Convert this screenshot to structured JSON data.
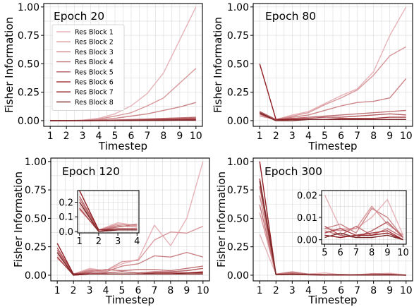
{
  "colors": [
    "#e6b3b8",
    "#d9989c",
    "#cc8588",
    "#c07276",
    "#b35b60",
    "#a83e44",
    "#8f1d22",
    "#7a2a2a"
  ],
  "chart_data": [
    {
      "type": "line",
      "title": "Epoch 20",
      "xlabel": "Timestep",
      "ylabel": "Fisher Information",
      "x": [
        1,
        2,
        3,
        4,
        5,
        6,
        7,
        8,
        9,
        10
      ],
      "xlim": [
        0.6,
        10.4
      ],
      "ylim": [
        -0.05,
        1.03
      ],
      "yticks": [
        "0.00",
        "0.25",
        "0.50",
        "0.75",
        "1.00"
      ],
      "legend": "top-left",
      "series": [
        {
          "name": "Res Block 1",
          "values": [
            0.0,
            0.0,
            0.005,
            0.02,
            0.06,
            0.13,
            0.24,
            0.42,
            0.71,
            1.0
          ]
        },
        {
          "name": "Res Block 2",
          "values": [
            0.0,
            0.0,
            0.003,
            0.015,
            0.04,
            0.07,
            0.13,
            0.2,
            0.33,
            0.46
          ]
        },
        {
          "name": "Res Block 3",
          "values": [
            0.0,
            0.0,
            0.002,
            0.008,
            0.02,
            0.04,
            0.06,
            0.09,
            0.12,
            0.16
          ]
        },
        {
          "name": "Res Block 4",
          "values": [
            0.0,
            0.0,
            0.001,
            0.003,
            0.006,
            0.01,
            0.015,
            0.02,
            0.025,
            0.03
          ]
        },
        {
          "name": "Res Block 5",
          "values": [
            0.0,
            0.0,
            0.001,
            0.002,
            0.004,
            0.007,
            0.01,
            0.014,
            0.018,
            0.022
          ]
        },
        {
          "name": "Res Block 6",
          "values": [
            0.0,
            0.0,
            0.0,
            0.001,
            0.002,
            0.004,
            0.006,
            0.008,
            0.01,
            0.012
          ]
        },
        {
          "name": "Res Block 7",
          "values": [
            0.0,
            0.0,
            0.0,
            0.001,
            0.001,
            0.002,
            0.003,
            0.004,
            0.005,
            0.006
          ]
        },
        {
          "name": "Res Block 8",
          "values": [
            0.0,
            0.0,
            0.0,
            0.0,
            0.001,
            0.001,
            0.002,
            0.002,
            0.003,
            0.003
          ]
        }
      ]
    },
    {
      "type": "line",
      "title": "Epoch 80",
      "xlabel": "Timestep",
      "ylabel": "Fisher Information",
      "x": [
        1,
        2,
        3,
        4,
        5,
        6,
        7,
        8,
        9,
        10
      ],
      "xlim": [
        0.6,
        10.4
      ],
      "ylim": [
        -0.05,
        1.03
      ],
      "yticks": [
        "0.00",
        "0.25",
        "0.50",
        "0.75",
        "1.00"
      ],
      "series": [
        {
          "values": [
            0.05,
            0.01,
            0.05,
            0.08,
            0.15,
            0.22,
            0.28,
            0.43,
            0.75,
            1.0
          ]
        },
        {
          "values": [
            0.04,
            0.01,
            0.04,
            0.07,
            0.14,
            0.2,
            0.27,
            0.4,
            0.57,
            0.65
          ]
        },
        {
          "values": [
            0.06,
            0.01,
            0.03,
            0.05,
            0.09,
            0.13,
            0.16,
            0.17,
            0.2,
            0.37
          ]
        },
        {
          "values": [
            0.07,
            0.01,
            0.02,
            0.03,
            0.04,
            0.05,
            0.06,
            0.07,
            0.08,
            0.09
          ]
        },
        {
          "values": [
            0.08,
            0.01,
            0.02,
            0.02,
            0.03,
            0.03,
            0.04,
            0.05,
            0.06,
            0.05
          ]
        },
        {
          "values": [
            0.06,
            0.0,
            0.01,
            0.01,
            0.01,
            0.02,
            0.02,
            0.02,
            0.03,
            0.03
          ]
        },
        {
          "values": [
            0.5,
            0.01,
            0.01,
            0.01,
            0.01,
            0.01,
            0.01,
            0.01,
            0.01,
            0.01
          ]
        },
        {
          "values": [
            0.07,
            0.0,
            0.0,
            0.01,
            0.01,
            0.01,
            0.01,
            0.01,
            0.01,
            0.01
          ]
        }
      ]
    },
    {
      "type": "line",
      "title": "Epoch 120",
      "xlabel": "Timestep",
      "ylabel": "Fisher Information",
      "x": [
        1,
        2,
        3,
        4,
        5,
        6,
        7,
        8,
        9,
        10
      ],
      "xlim": [
        0.6,
        10.4
      ],
      "ylim": [
        -0.05,
        1.03
      ],
      "yticks": [
        "0.00",
        "0.25",
        "0.50",
        "0.75",
        "1.00"
      ],
      "series": [
        {
          "values": [
            0.18,
            0.01,
            0.06,
            0.04,
            0.1,
            0.14,
            0.44,
            0.26,
            0.5,
            1.0
          ]
        },
        {
          "values": [
            0.15,
            0.01,
            0.05,
            0.04,
            0.12,
            0.13,
            0.31,
            0.38,
            0.37,
            0.43
          ]
        },
        {
          "values": [
            0.2,
            0.01,
            0.04,
            0.03,
            0.08,
            0.1,
            0.17,
            0.16,
            0.2,
            0.16
          ]
        },
        {
          "values": [
            0.22,
            0.01,
            0.03,
            0.05,
            0.04,
            0.05,
            0.05,
            0.04,
            0.06,
            0.08
          ]
        },
        {
          "values": [
            0.24,
            0.01,
            0.02,
            0.02,
            0.03,
            0.02,
            0.03,
            0.03,
            0.04,
            0.06
          ]
        },
        {
          "values": [
            0.16,
            0.0,
            0.01,
            0.01,
            0.01,
            0.01,
            0.02,
            0.02,
            0.02,
            0.03
          ]
        },
        {
          "values": [
            0.28,
            0.01,
            0.01,
            0.01,
            0.01,
            0.01,
            0.01,
            0.01,
            0.02,
            0.02
          ]
        },
        {
          "values": [
            0.2,
            0.0,
            0.01,
            0.01,
            0.01,
            0.01,
            0.01,
            0.01,
            0.01,
            0.01
          ]
        }
      ],
      "inset": {
        "xlim": [
          0.9,
          4.1
        ],
        "ylim": [
          -0.01,
          0.28
        ],
        "xticks": [
          1,
          2,
          3,
          4
        ],
        "yticks": [
          "0.0",
          "0.1",
          "0.2"
        ],
        "x": [
          1,
          2,
          3,
          4
        ]
      }
    },
    {
      "type": "line",
      "title": "Epoch 300",
      "xlabel": "Timestep",
      "ylabel": "Fisher Information",
      "x": [
        1,
        2,
        3,
        4,
        5,
        6,
        7,
        8,
        9,
        10
      ],
      "xlim": [
        0.6,
        10.4
      ],
      "ylim": [
        -0.05,
        1.03
      ],
      "yticks": [
        "0.00",
        "0.25",
        "0.50",
        "0.75",
        "1.00"
      ],
      "series": [
        {
          "values": [
            0.36,
            0.01,
            0.01,
            0.01,
            0.02,
            0.005,
            0.005,
            0.01,
            0.018,
            0.002
          ]
        },
        {
          "values": [
            0.55,
            0.01,
            0.02,
            0.01,
            0.005,
            0.004,
            0.005,
            0.015,
            0.007,
            0.002
          ]
        },
        {
          "values": [
            0.7,
            0.01,
            0.03,
            0.01,
            0.005,
            0.007,
            0.003,
            0.014,
            0.01,
            0.001
          ]
        },
        {
          "values": [
            0.62,
            0.01,
            0.02,
            0.01,
            0.004,
            0.002,
            0.006,
            0.002,
            0.005,
            0.001
          ]
        },
        {
          "values": [
            0.78,
            0.005,
            0.01,
            0.005,
            0.006,
            0.002,
            0.001,
            0.004,
            0.008,
            0.001
          ]
        },
        {
          "values": [
            0.85,
            0.005,
            0.01,
            0.005,
            0.003,
            0.005,
            0.002,
            0.003,
            0.004,
            0.0
          ]
        },
        {
          "values": [
            1.0,
            0.004,
            0.006,
            0.004,
            0.002,
            0.001,
            0.002,
            0.002,
            0.003,
            0.0
          ]
        },
        {
          "values": [
            0.83,
            0.005,
            0.008,
            0.003,
            0.001,
            0.003,
            0.001,
            0.001,
            0.002,
            0.0
          ]
        }
      ],
      "inset": {
        "xlim": [
          4.8,
          10.2
        ],
        "ylim": [
          -0.002,
          0.022
        ],
        "xticks": [
          5,
          6,
          7,
          8,
          9,
          10
        ],
        "yticks": [
          "0.00",
          "0.01",
          "0.02"
        ],
        "x": [
          5,
          6,
          7,
          8,
          9,
          10
        ]
      }
    }
  ]
}
